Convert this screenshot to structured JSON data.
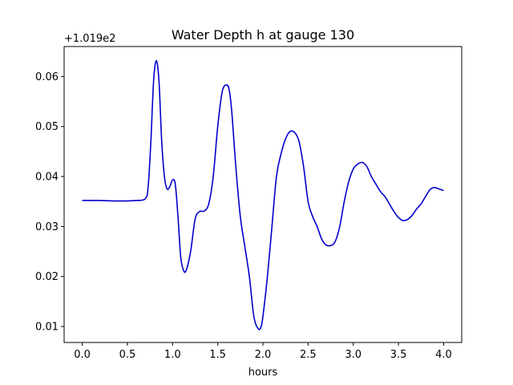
{
  "chart_data": {
    "type": "line",
    "title": "Water Depth h at gauge 130",
    "xlabel": "hours",
    "ylabel": "",
    "y_offset_label": "+1.019e2",
    "xlim": [
      -0.2,
      4.2
    ],
    "ylim": [
      0.0068,
      0.066
    ],
    "xticks": [
      0.0,
      0.5,
      1.0,
      1.5,
      2.0,
      2.5,
      3.0,
      3.5,
      4.0
    ],
    "xtick_labels": [
      "0.0",
      "0.5",
      "1.0",
      "1.5",
      "2.0",
      "2.5",
      "3.0",
      "3.5",
      "4.0"
    ],
    "yticks": [
      0.01,
      0.02,
      0.03,
      0.04,
      0.05,
      0.06
    ],
    "ytick_labels": [
      "0.01",
      "0.02",
      "0.03",
      "0.04",
      "0.05",
      "0.06"
    ],
    "grid": false,
    "color": "#0000cc",
    "series": [
      {
        "x": [
          0.0,
          0.2,
          0.4,
          0.6,
          0.7,
          0.73,
          0.76,
          0.79,
          0.82,
          0.85,
          0.88,
          0.91,
          0.94,
          0.97,
          1.0,
          1.03,
          1.06,
          1.09,
          1.12,
          1.15,
          1.2,
          1.25,
          1.3,
          1.35,
          1.4,
          1.45,
          1.5,
          1.55,
          1.6,
          1.63,
          1.66,
          1.7,
          1.75,
          1.8,
          1.85,
          1.9,
          1.95,
          1.98,
          2.0,
          2.05,
          2.1,
          2.15,
          2.2,
          2.25,
          2.3,
          2.35,
          2.4,
          2.45,
          2.5,
          2.55,
          2.6,
          2.65,
          2.7,
          2.75,
          2.8,
          2.85,
          2.9,
          2.95,
          3.0,
          3.05,
          3.1,
          3.15,
          3.2,
          3.25,
          3.3,
          3.35,
          3.4,
          3.45,
          3.5,
          3.55,
          3.6,
          3.65,
          3.7,
          3.75,
          3.8,
          3.85,
          3.9,
          3.95,
          4.0
        ],
        "y": [
          0.0352,
          0.0352,
          0.0351,
          0.0352,
          0.0356,
          0.038,
          0.047,
          0.059,
          0.0632,
          0.059,
          0.047,
          0.04,
          0.0375,
          0.038,
          0.0393,
          0.0385,
          0.032,
          0.024,
          0.0213,
          0.0212,
          0.025,
          0.0315,
          0.033,
          0.0331,
          0.0345,
          0.04,
          0.05,
          0.057,
          0.0583,
          0.057,
          0.052,
          0.042,
          0.032,
          0.026,
          0.02,
          0.012,
          0.0095,
          0.01,
          0.012,
          0.02,
          0.03,
          0.04,
          0.0445,
          0.0475,
          0.049,
          0.0488,
          0.047,
          0.042,
          0.035,
          0.032,
          0.03,
          0.0275,
          0.0263,
          0.0262,
          0.027,
          0.03,
          0.035,
          0.039,
          0.0415,
          0.0425,
          0.0428,
          0.042,
          0.04,
          0.0385,
          0.037,
          0.036,
          0.0345,
          0.033,
          0.0318,
          0.0312,
          0.0314,
          0.0322,
          0.0335,
          0.0345,
          0.036,
          0.0374,
          0.0378,
          0.0375,
          0.0372
        ]
      }
    ]
  }
}
